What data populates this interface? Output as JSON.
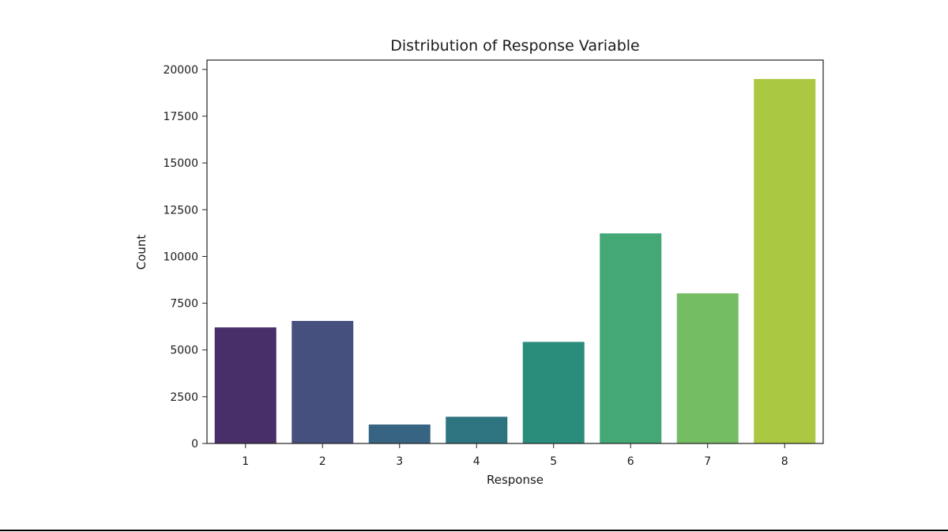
{
  "chart_data": {
    "type": "bar",
    "title": "Distribution of Response Variable",
    "xlabel": "Response",
    "ylabel": "Count",
    "categories": [
      "1",
      "2",
      "3",
      "4",
      "5",
      "6",
      "7",
      "8"
    ],
    "values": [
      6207,
      6552,
      1013,
      1428,
      5432,
      11233,
      8027,
      19489
    ],
    "colors": [
      "#482f6a",
      "#46507f",
      "#386483",
      "#2e7480",
      "#2a8d7b",
      "#43a776",
      "#75bd63",
      "#aac841"
    ],
    "ylim": [
      0,
      20500
    ],
    "yticks": [
      0,
      2500,
      5000,
      7500,
      10000,
      12500,
      15000,
      17500,
      20000
    ],
    "grid": false,
    "legend": "none"
  }
}
